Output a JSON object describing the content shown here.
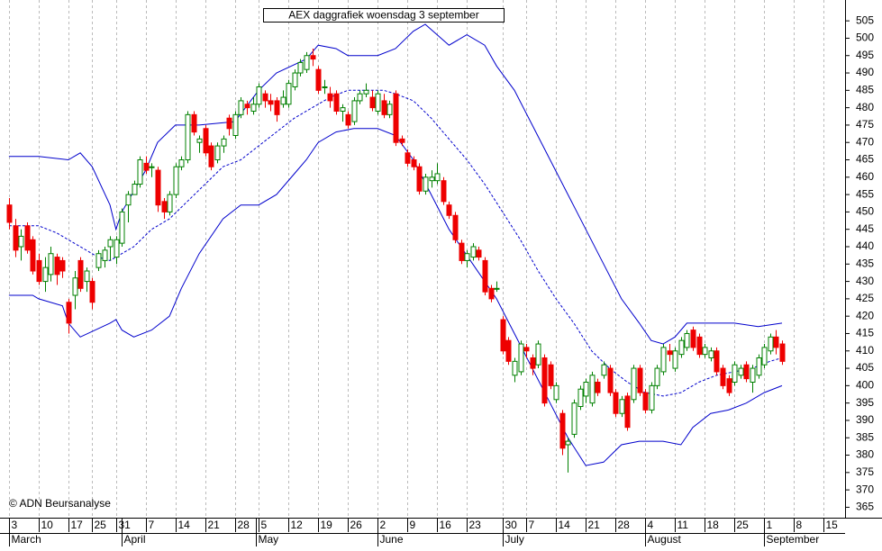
{
  "chart_data": {
    "type": "candlestick",
    "title": "AEX daggrafiek woensdag 3 september",
    "annotation": "© ADN Beursanalyse",
    "xlim": [
      -1.5,
      140.6
    ],
    "ylim": [
      362,
      511
    ],
    "yticks": [
      365,
      370,
      375,
      380,
      385,
      390,
      395,
      400,
      405,
      410,
      415,
      420,
      425,
      430,
      435,
      440,
      445,
      450,
      455,
      460,
      465,
      470,
      475,
      480,
      485,
      490,
      495,
      500,
      505
    ],
    "xticks": [
      {
        "value": 0,
        "label": "3"
      },
      {
        "value": 5,
        "label": "10"
      },
      {
        "value": 10,
        "label": "17"
      },
      {
        "value": 14,
        "label": "25"
      },
      {
        "value": 18,
        "label": "31"
      },
      {
        "value": 23,
        "label": "7"
      },
      {
        "value": 28,
        "label": "14"
      },
      {
        "value": 33,
        "label": "21"
      },
      {
        "value": 38,
        "label": "28"
      },
      {
        "value": 42,
        "label": "5"
      },
      {
        "value": 47,
        "label": "12"
      },
      {
        "value": 52,
        "label": "19"
      },
      {
        "value": 57,
        "label": "26"
      },
      {
        "value": 62,
        "label": "2"
      },
      {
        "value": 67,
        "label": "9"
      },
      {
        "value": 72,
        "label": "16"
      },
      {
        "value": 77,
        "label": "23"
      },
      {
        "value": 83,
        "label": "30"
      },
      {
        "value": 87,
        "label": "7"
      },
      {
        "value": 92,
        "label": "14"
      },
      {
        "value": 97,
        "label": "21"
      },
      {
        "value": 102,
        "label": "28"
      },
      {
        "value": 107,
        "label": "4"
      },
      {
        "value": 112,
        "label": "11"
      },
      {
        "value": 117,
        "label": "18"
      },
      {
        "value": 122,
        "label": "25"
      },
      {
        "value": 127,
        "label": "1"
      },
      {
        "value": 132,
        "label": "8"
      },
      {
        "value": 137,
        "label": "15"
      }
    ],
    "months": [
      {
        "value": 0,
        "label": "March"
      },
      {
        "value": 19,
        "label": "April"
      },
      {
        "value": 41.5,
        "label": "May"
      },
      {
        "value": 62,
        "label": "June"
      },
      {
        "value": 83,
        "label": "July"
      },
      {
        "value": 107,
        "label": "August"
      },
      {
        "value": 127,
        "label": "September"
      }
    ],
    "grid": true,
    "up_color": "#008000",
    "down_color": "#ee0000",
    "x": [
      0,
      1,
      2,
      3,
      4,
      5,
      6,
      7,
      8,
      9,
      10,
      11,
      12,
      13,
      14,
      15,
      16,
      17,
      18,
      19,
      20,
      21,
      22,
      23,
      24,
      25,
      26,
      27,
      28,
      29,
      30,
      31,
      32,
      33,
      34,
      35,
      36,
      37,
      38,
      39,
      40,
      41,
      42,
      43,
      44,
      45,
      46,
      47,
      48,
      49,
      50,
      51,
      52,
      53,
      54,
      55,
      56,
      57,
      58,
      59,
      60,
      61,
      62,
      63,
      64,
      65,
      66,
      67,
      68,
      69,
      70,
      71,
      72,
      73,
      74,
      75,
      76,
      77,
      78,
      79,
      80,
      81,
      82,
      83,
      84,
      85,
      86,
      87,
      88,
      89,
      90,
      91,
      92,
      93,
      94,
      95,
      96,
      97,
      98,
      99,
      100,
      101,
      102,
      103,
      104,
      105,
      106,
      107,
      108,
      109,
      110,
      111,
      112,
      113,
      114,
      115,
      116,
      117,
      118,
      119,
      120,
      121,
      122,
      123,
      124,
      125,
      126,
      127,
      128,
      129,
      130
    ],
    "ohlc": [
      [
        452,
        454,
        445,
        447
      ],
      [
        446,
        448,
        437,
        439
      ],
      [
        440,
        445,
        436,
        443
      ],
      [
        446,
        447,
        438,
        439
      ],
      [
        442,
        443,
        432,
        433
      ],
      [
        436,
        438,
        429,
        430
      ],
      [
        430,
        437,
        427,
        434
      ],
      [
        432,
        440,
        430,
        438
      ],
      [
        437,
        438,
        429,
        432
      ],
      [
        436,
        437,
        431,
        433
      ],
      [
        424,
        425,
        415,
        418
      ],
      [
        426,
        433,
        422,
        431
      ],
      [
        436,
        437,
        427,
        428
      ],
      [
        430,
        434,
        427,
        433
      ],
      [
        430,
        431,
        422,
        424
      ],
      [
        434,
        439,
        433,
        438
      ],
      [
        436,
        440,
        434,
        439
      ],
      [
        440,
        443,
        436,
        442
      ],
      [
        437,
        443,
        435,
        442
      ],
      [
        441,
        451,
        440,
        450
      ],
      [
        452,
        456,
        447,
        455
      ],
      [
        455,
        459,
        455,
        458
      ],
      [
        458,
        466,
        457,
        465
      ],
      [
        464,
        466,
        461,
        462
      ],
      [
        463,
        464,
        460,
        463
      ],
      [
        462,
        463,
        450,
        452
      ],
      [
        453,
        454,
        448,
        450
      ],
      [
        450,
        456,
        449,
        455
      ],
      [
        455,
        464,
        454,
        463
      ],
      [
        463,
        466,
        462,
        465
      ],
      [
        465,
        479,
        464,
        478
      ],
      [
        478,
        479,
        472,
        473
      ],
      [
        470,
        472,
        467,
        471
      ],
      [
        474,
        475,
        466,
        467
      ],
      [
        469,
        470,
        462,
        463
      ],
      [
        465,
        470,
        464,
        469
      ],
      [
        469,
        472,
        467,
        471
      ],
      [
        477,
        478,
        472,
        474
      ],
      [
        472,
        479,
        471,
        478
      ],
      [
        478,
        483,
        477,
        482
      ],
      [
        481,
        482,
        478,
        480
      ],
      [
        479,
        483,
        478,
        481
      ],
      [
        481,
        487,
        480,
        486
      ],
      [
        484,
        485,
        480,
        482
      ],
      [
        482,
        484,
        479,
        481
      ],
      [
        482,
        483,
        476,
        478
      ],
      [
        481,
        485,
        480,
        483
      ],
      [
        481,
        488,
        480,
        487
      ],
      [
        486,
        491,
        485,
        490
      ],
      [
        490,
        494,
        489,
        493
      ],
      [
        491,
        496,
        490,
        495
      ],
      [
        495,
        497,
        492,
        494
      ],
      [
        491,
        492,
        484,
        485
      ],
      [
        486,
        488,
        484,
        486
      ],
      [
        484,
        486,
        480,
        482
      ],
      [
        484,
        485,
        478,
        479
      ],
      [
        479,
        481,
        476,
        480
      ],
      [
        478,
        479,
        474,
        475
      ],
      [
        476,
        483,
        475,
        482
      ],
      [
        482,
        485,
        481,
        484
      ],
      [
        484,
        487,
        483,
        485
      ],
      [
        483,
        485,
        479,
        480
      ],
      [
        479,
        485,
        478,
        484
      ],
      [
        482,
        484,
        477,
        478
      ],
      [
        478,
        482,
        477,
        481
      ],
      [
        484,
        485,
        469,
        470
      ],
      [
        471,
        472,
        469,
        470
      ],
      [
        467,
        468,
        463,
        464
      ],
      [
        465,
        466,
        462,
        463
      ],
      [
        463,
        464,
        455,
        456
      ],
      [
        456,
        461,
        455,
        460
      ],
      [
        459,
        462,
        457,
        460
      ],
      [
        459,
        464,
        458,
        461
      ],
      [
        459,
        460,
        452,
        453
      ],
      [
        452,
        453,
        448,
        449
      ],
      [
        449,
        450,
        441,
        442
      ],
      [
        441,
        442,
        435,
        436
      ],
      [
        436,
        439,
        434,
        438
      ],
      [
        437,
        441,
        436,
        440
      ],
      [
        439,
        440,
        436,
        437
      ],
      [
        436,
        437,
        426,
        427
      ],
      [
        428,
        429,
        424,
        425
      ],
      [
        428,
        430,
        427,
        428
      ],
      [
        419,
        420,
        409,
        410
      ],
      [
        413,
        414,
        406,
        407
      ],
      [
        403,
        408,
        401,
        407
      ],
      [
        404,
        413,
        403,
        412
      ],
      [
        411,
        412,
        408,
        410
      ],
      [
        408,
        409,
        403,
        405
      ],
      [
        406,
        413,
        405,
        412
      ],
      [
        408,
        409,
        394,
        395
      ],
      [
        406,
        407,
        399,
        400
      ],
      [
        396,
        401,
        395,
        400
      ],
      [
        392,
        393,
        380,
        382
      ],
      [
        383,
        385,
        375,
        384
      ],
      [
        386,
        396,
        385,
        395
      ],
      [
        394,
        400,
        393,
        399
      ],
      [
        397,
        402,
        395,
        401
      ],
      [
        395,
        404,
        394,
        403
      ],
      [
        401,
        402,
        397,
        398
      ],
      [
        403,
        407,
        402,
        406
      ],
      [
        405,
        406,
        397,
        398
      ],
      [
        398,
        399,
        391,
        392
      ],
      [
        392,
        397,
        391,
        396
      ],
      [
        397,
        398,
        387,
        388
      ],
      [
        396,
        406,
        395,
        405
      ],
      [
        405,
        406,
        397,
        398
      ],
      [
        398,
        399,
        392,
        393
      ],
      [
        393,
        401,
        392,
        400
      ],
      [
        400,
        406,
        399,
        405
      ],
      [
        404,
        412,
        403,
        411
      ],
      [
        410,
        412,
        407,
        409
      ],
      [
        405,
        411,
        404,
        410
      ],
      [
        409,
        414,
        408,
        413
      ],
      [
        411,
        416,
        410,
        415
      ],
      [
        416,
        417,
        410,
        411
      ],
      [
        414,
        415,
        408,
        409
      ],
      [
        409,
        412,
        408,
        411
      ],
      [
        408,
        411,
        407,
        410
      ],
      [
        410,
        411,
        403,
        404
      ],
      [
        405,
        406,
        399,
        400
      ],
      [
        402,
        403,
        397,
        398
      ],
      [
        401,
        407,
        400,
        406
      ],
      [
        403,
        406,
        402,
        405
      ],
      [
        406,
        407,
        401,
        402
      ],
      [
        401,
        406,
        398,
        405
      ],
      [
        403,
        409,
        402,
        408
      ],
      [
        406,
        412,
        405,
        411
      ],
      [
        410,
        415,
        409,
        414
      ],
      [
        414,
        416,
        409,
        411
      ],
      [
        412,
        413,
        406,
        407
      ]
    ],
    "bands": [
      {
        "color": "#0000cc",
        "style": "solid",
        "x": [
          0,
          5,
          10,
          12,
          14,
          17,
          18,
          19,
          23,
          25,
          28,
          32,
          38,
          42,
          45,
          50,
          52,
          55,
          57,
          62,
          65,
          68,
          70,
          72,
          74,
          77,
          80,
          82,
          85,
          88,
          91,
          94,
          97,
          100,
          103,
          106,
          108,
          110,
          112,
          114,
          117,
          122,
          126,
          130
        ],
        "values": [
          466,
          466,
          465,
          467,
          463,
          452,
          445,
          450,
          462,
          470,
          475,
          475,
          476,
          485,
          490,
          494,
          498,
          497,
          495,
          495,
          497,
          502,
          504,
          501,
          498,
          501,
          498,
          492,
          485,
          475,
          465,
          455,
          445,
          435,
          425,
          418,
          413,
          412,
          414,
          418,
          418,
          418,
          417,
          418
        ]
      },
      {
        "color": "#0000cc",
        "style": "dashed",
        "x": [
          0,
          5,
          8,
          12,
          15,
          17,
          19,
          21,
          24,
          27,
          30,
          33,
          36,
          39,
          42,
          45,
          48,
          51,
          54,
          57,
          60,
          63,
          65,
          68,
          71,
          74,
          77,
          80,
          83,
          86,
          89,
          92,
          95,
          98,
          101,
          104,
          107,
          110,
          113,
          116,
          119,
          122,
          125,
          128,
          130
        ],
        "values": [
          446,
          446,
          444,
          440,
          437,
          436,
          438,
          440,
          445,
          448,
          453,
          458,
          463,
          465,
          469,
          473,
          477,
          480,
          483,
          485,
          485,
          485,
          484,
          482,
          477,
          471,
          465,
          458,
          450,
          442,
          433,
          425,
          418,
          410,
          405,
          401,
          398,
          397,
          398,
          401,
          403,
          404,
          405,
          407,
          408
        ]
      },
      {
        "color": "#0000cc",
        "style": "solid",
        "x": [
          0,
          4,
          5,
          9,
          10,
          12,
          17,
          18,
          19,
          21,
          24,
          27,
          29,
          32,
          36,
          39,
          42,
          45,
          48,
          50,
          52,
          55,
          58,
          62,
          65,
          68,
          71,
          74,
          78,
          82,
          85,
          88,
          91,
          94,
          97,
          100,
          103,
          106,
          110,
          113,
          115,
          118,
          121,
          124,
          127,
          130
        ],
        "values": [
          426,
          426,
          425,
          423,
          418,
          414,
          418,
          419,
          416,
          414,
          416,
          420,
          428,
          438,
          448,
          452,
          452,
          455,
          461,
          465,
          470,
          473,
          474,
          474,
          472,
          465,
          455,
          445,
          435,
          425,
          415,
          405,
          395,
          385,
          377,
          378,
          383,
          384,
          384,
          383,
          388,
          392,
          393,
          395,
          398,
          400
        ]
      }
    ]
  }
}
